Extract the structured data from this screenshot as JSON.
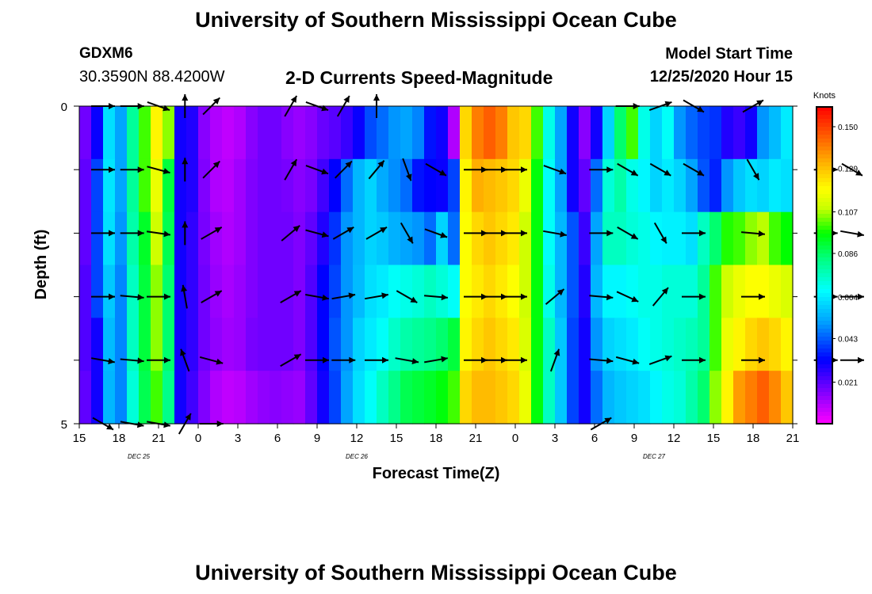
{
  "header": {
    "title": "University of Southern Mississippi Ocean Cube",
    "station": "GDXM6",
    "coordinates": "30.3590N 88.4200W",
    "subtitle": "2-D Currents Speed-Magnitude",
    "model_start_label": "Model Start Time",
    "model_start_value": "12/25/2020 Hour 15"
  },
  "footer": {
    "title": "University of Southern Mississippi Ocean Cube"
  },
  "chart_data": {
    "type": "heatmap",
    "title": "2-D Currents Speed-Magnitude",
    "xlabel": "Forecast Time(Z)",
    "ylabel": "Depth (ft)",
    "x_tick_labels": [
      "15",
      "18",
      "21",
      "0",
      "3",
      "6",
      "9",
      "12",
      "15",
      "18",
      "21",
      "0",
      "3",
      "6",
      "9",
      "12",
      "15",
      "18",
      "21"
    ],
    "date_labels": [
      {
        "label": "DEC  25",
        "at_tick": 1.5
      },
      {
        "label": "DEC  26",
        "at_tick": 7
      },
      {
        "label": "DEC  27",
        "at_tick": 14.5
      }
    ],
    "y_tick_labels": [
      "0",
      "",
      "",
      "",
      "",
      "5"
    ],
    "ylim": [
      0,
      5
    ],
    "colorbar": {
      "unit": "Knots",
      "range": [
        0.0,
        0.16
      ],
      "ticks": [
        "0.150",
        "0.129",
        "0.107",
        "0.086",
        "0.064",
        "0.043",
        "0.021"
      ],
      "tick_values": [
        0.15,
        0.129,
        0.107,
        0.086,
        0.064,
        0.043,
        0.021
      ]
    },
    "depths": [
      0,
      1,
      2,
      3,
      4,
      5
    ],
    "hours_per_column": 1,
    "speed_rows": [
      [
        0.018,
        0.031,
        0.062,
        0.052,
        0.08,
        0.1,
        0.12,
        0.105,
        0.03,
        0.028,
        0.015,
        0.01,
        0.008,
        0.01,
        0.015,
        0.018,
        0.018,
        0.015,
        0.013,
        0.015,
        0.019,
        0.021,
        0.025,
        0.031,
        0.041,
        0.045,
        0.05,
        0.052,
        0.048,
        0.034,
        0.03,
        0.01,
        0.125,
        0.14,
        0.145,
        0.14,
        0.128,
        0.125,
        0.1,
        0.07,
        0.052,
        0.03,
        0.015,
        0.03,
        0.06,
        0.085,
        0.1,
        0.07,
        0.06,
        0.068,
        0.05,
        0.044,
        0.04,
        0.038,
        0.028,
        0.025,
        0.03,
        0.05,
        0.056,
        0.064
      ],
      [
        0.02,
        0.04,
        0.063,
        0.052,
        0.08,
        0.1,
        0.115,
        0.09,
        0.03,
        0.028,
        0.016,
        0.01,
        0.009,
        0.012,
        0.016,
        0.018,
        0.018,
        0.017,
        0.015,
        0.017,
        0.024,
        0.032,
        0.045,
        0.055,
        0.06,
        0.053,
        0.049,
        0.045,
        0.034,
        0.032,
        0.031,
        0.04,
        0.12,
        0.132,
        0.13,
        0.128,
        0.125,
        0.115,
        0.095,
        0.068,
        0.052,
        0.03,
        0.02,
        0.045,
        0.072,
        0.078,
        0.07,
        0.066,
        0.06,
        0.064,
        0.06,
        0.052,
        0.042,
        0.036,
        0.05,
        0.058,
        0.062,
        0.06,
        0.064,
        0.062
      ],
      [
        0.02,
        0.04,
        0.062,
        0.05,
        0.078,
        0.092,
        0.11,
        0.088,
        0.03,
        0.026,
        0.017,
        0.012,
        0.01,
        0.012,
        0.016,
        0.018,
        0.018,
        0.018,
        0.016,
        0.02,
        0.028,
        0.038,
        0.05,
        0.055,
        0.06,
        0.058,
        0.054,
        0.052,
        0.05,
        0.045,
        0.06,
        0.045,
        0.118,
        0.125,
        0.128,
        0.125,
        0.122,
        0.11,
        0.095,
        0.068,
        0.055,
        0.042,
        0.025,
        0.052,
        0.075,
        0.075,
        0.072,
        0.07,
        0.066,
        0.065,
        0.065,
        0.062,
        0.075,
        0.085,
        0.098,
        0.1,
        0.105,
        0.108,
        0.1,
        0.096
      ],
      [
        0.022,
        0.04,
        0.058,
        0.048,
        0.075,
        0.09,
        0.105,
        0.085,
        0.03,
        0.026,
        0.018,
        0.013,
        0.011,
        0.013,
        0.016,
        0.018,
        0.018,
        0.018,
        0.016,
        0.022,
        0.032,
        0.04,
        0.05,
        0.056,
        0.062,
        0.064,
        0.068,
        0.07,
        0.072,
        0.075,
        0.072,
        0.068,
        0.118,
        0.122,
        0.125,
        0.122,
        0.118,
        0.11,
        0.095,
        0.07,
        0.055,
        0.042,
        0.028,
        0.055,
        0.066,
        0.066,
        0.068,
        0.07,
        0.07,
        0.072,
        0.072,
        0.072,
        0.08,
        0.1,
        0.11,
        0.115,
        0.118,
        0.118,
        0.115,
        0.112
      ],
      [
        0.022,
        0.03,
        0.056,
        0.048,
        0.075,
        0.09,
        0.105,
        0.085,
        0.03,
        0.026,
        0.018,
        0.014,
        0.012,
        0.013,
        0.017,
        0.018,
        0.018,
        0.018,
        0.016,
        0.022,
        0.032,
        0.042,
        0.05,
        0.06,
        0.064,
        0.068,
        0.074,
        0.078,
        0.08,
        0.082,
        0.085,
        0.09,
        0.12,
        0.125,
        0.128,
        0.125,
        0.122,
        0.112,
        0.095,
        0.075,
        0.058,
        0.04,
        0.03,
        0.05,
        0.06,
        0.062,
        0.064,
        0.068,
        0.07,
        0.072,
        0.074,
        0.076,
        0.08,
        0.1,
        0.115,
        0.12,
        0.125,
        0.128,
        0.125,
        0.12
      ],
      [
        0.02,
        0.03,
        0.055,
        0.048,
        0.072,
        0.088,
        0.1,
        0.082,
        0.03,
        0.024,
        0.016,
        0.01,
        0.008,
        0.009,
        0.012,
        0.014,
        0.015,
        0.014,
        0.013,
        0.02,
        0.03,
        0.04,
        0.052,
        0.062,
        0.068,
        0.075,
        0.082,
        0.088,
        0.09,
        0.092,
        0.095,
        0.1,
        0.125,
        0.13,
        0.13,
        0.128,
        0.125,
        0.115,
        0.095,
        0.075,
        0.058,
        0.04,
        0.03,
        0.045,
        0.055,
        0.058,
        0.06,
        0.062,
        0.066,
        0.07,
        0.072,
        0.078,
        0.085,
        0.105,
        0.12,
        0.135,
        0.14,
        0.145,
        0.138,
        0.128
      ]
    ],
    "vector_hours": [
      1.8,
      4,
      6,
      8,
      10,
      13.5,
      16,
      18,
      20,
      22.5,
      24.8,
      27,
      30,
      31.5,
      33,
      36,
      39.5,
      41.5,
      44,
      46.5,
      51,
      54,
      56.5,
      58.5
    ],
    "vector_depths": [
      0,
      1,
      2,
      3,
      4,
      5
    ],
    "vector_angles_deg": [
      [
        0,
        0,
        -20,
        90,
        45,
        0,
        60,
        -20,
        60,
        90,
        90,
        0,
        0,
        0,
        0,
        0,
        60,
        0,
        20,
        -30,
        30,
        0,
        30,
        0
      ],
      [
        0,
        0,
        -15,
        90,
        45,
        0,
        60,
        -20,
        45,
        50,
        -70,
        -30,
        0,
        0,
        0,
        -20,
        0,
        -30,
        -30,
        -30,
        -60,
        0,
        0,
        -30
      ],
      [
        0,
        0,
        -8,
        90,
        30,
        0,
        40,
        -15,
        30,
        30,
        -60,
        -20,
        0,
        0,
        0,
        -10,
        0,
        -30,
        -60,
        0,
        -5,
        0,
        0,
        -10
      ],
      [
        0,
        -5,
        0,
        100,
        30,
        0,
        30,
        -10,
        10,
        10,
        -30,
        -5,
        0,
        0,
        0,
        40,
        -5,
        -25,
        50,
        0,
        0,
        0,
        0,
        0
      ],
      [
        -10,
        -5,
        0,
        110,
        -15,
        0,
        30,
        0,
        0,
        0,
        -10,
        10,
        0,
        0,
        0,
        70,
        -5,
        -15,
        20,
        0,
        0,
        0,
        0,
        0
      ],
      [
        -30,
        -10,
        -10,
        60,
        0,
        0,
        0,
        0,
        0,
        0,
        0,
        0,
        0,
        0,
        0,
        0,
        30,
        0,
        0,
        0,
        0,
        0,
        0,
        0
      ]
    ],
    "vector_draw": [
      [
        1,
        1,
        1,
        1,
        1,
        0,
        1,
        1,
        1,
        1,
        0,
        0,
        0,
        0,
        0,
        0,
        0,
        1,
        1,
        1,
        1,
        0,
        0,
        0
      ],
      [
        1,
        1,
        1,
        1,
        1,
        0,
        1,
        1,
        1,
        1,
        1,
        1,
        1,
        1,
        1,
        1,
        1,
        1,
        1,
        1,
        1,
        0,
        1,
        1
      ],
      [
        1,
        1,
        1,
        1,
        1,
        0,
        1,
        1,
        1,
        1,
        1,
        1,
        1,
        1,
        1,
        1,
        1,
        1,
        1,
        1,
        1,
        0,
        1,
        1
      ],
      [
        1,
        1,
        1,
        1,
        1,
        0,
        1,
        1,
        1,
        1,
        1,
        1,
        1,
        1,
        1,
        1,
        1,
        1,
        1,
        1,
        1,
        0,
        1,
        1
      ],
      [
        1,
        1,
        1,
        1,
        1,
        0,
        1,
        1,
        1,
        1,
        1,
        1,
        1,
        1,
        1,
        1,
        1,
        1,
        1,
        1,
        1,
        0,
        1,
        1
      ],
      [
        1,
        1,
        1,
        1,
        1,
        0,
        0,
        0,
        0,
        0,
        0,
        0,
        0,
        0,
        0,
        0,
        1,
        0,
        0,
        0,
        0,
        0,
        0,
        0
      ]
    ]
  }
}
